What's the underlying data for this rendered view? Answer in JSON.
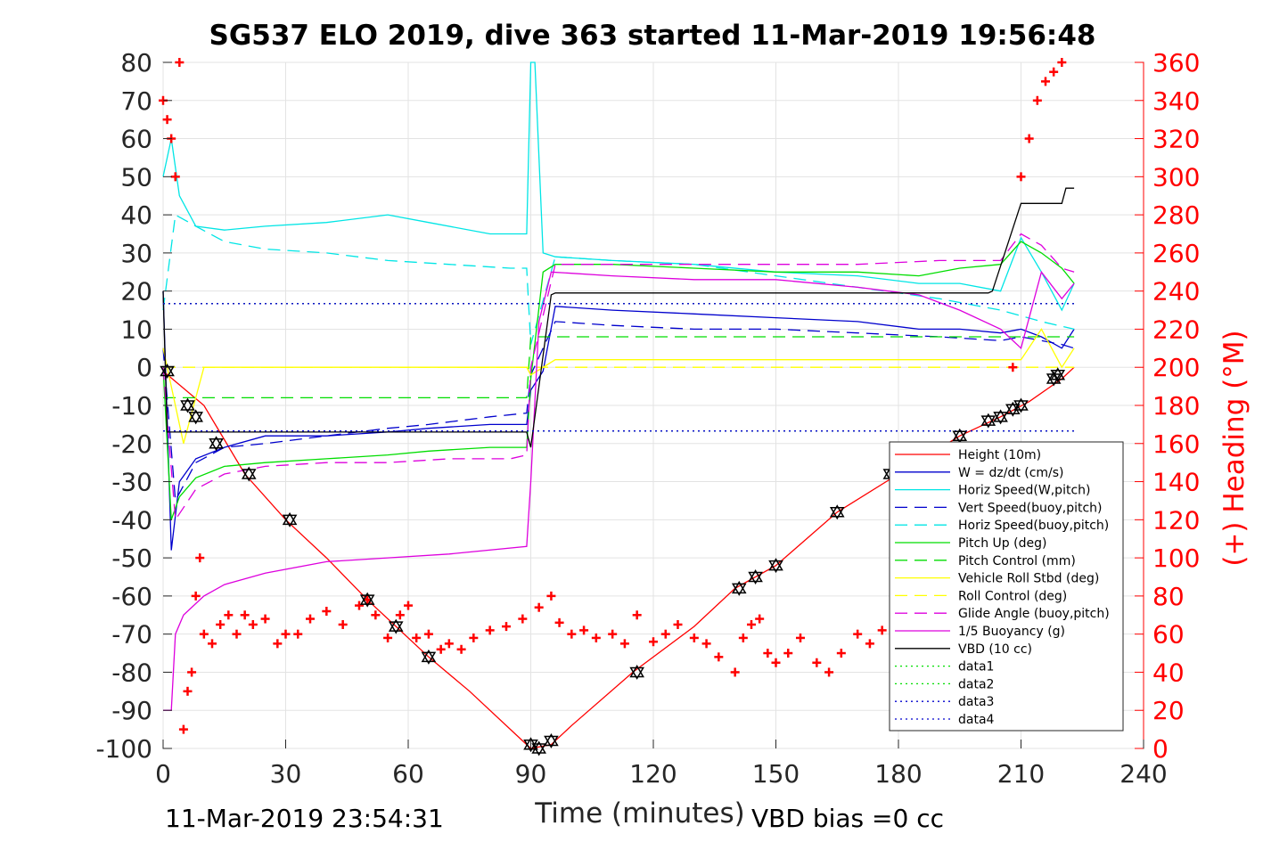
{
  "chart_data": {
    "type": "line",
    "title": "SG537 ELO 2019, dive 363 started 11-Mar-2019 19:56:48",
    "xlabel": "Time (minutes)",
    "ylabel": "",
    "ylabel_right": "(+) Heading (°M)",
    "xlim": [
      0,
      240
    ],
    "ylim": [
      -100,
      80
    ],
    "ylim_right": [
      0,
      360
    ],
    "xticks": [
      "0",
      "30",
      "60",
      "90",
      "120",
      "150",
      "180",
      "210",
      "240"
    ],
    "yticks_left": [
      "80",
      "70",
      "60",
      "50",
      "40",
      "30",
      "20",
      "10",
      "0",
      "-10",
      "-20",
      "-30",
      "-40",
      "-50",
      "-60",
      "-70",
      "-80",
      "-90",
      "-100"
    ],
    "yticks_right": [
      "360",
      "340",
      "320",
      "300",
      "280",
      "260",
      "240",
      "220",
      "200",
      "180",
      "160",
      "140",
      "120",
      "100",
      "80",
      "60",
      "40",
      "20",
      "0"
    ],
    "grid": true,
    "legend_position": "bottom-right",
    "footer_left": "11-Mar-2019 23:54:31",
    "footer_right": "VBD bias =0 cc",
    "series": [
      {
        "name": "Height (10m)",
        "color": "#ff0000",
        "style": "solid",
        "x": [
          0,
          10,
          20,
          30,
          40,
          50,
          57,
          65,
          75,
          90,
          95,
          100,
          115,
          130,
          140,
          150,
          165,
          180,
          195,
          205,
          212,
          220,
          223
        ],
        "y": [
          -1,
          -10,
          -28,
          -40,
          -50,
          -61,
          -68,
          -76,
          -85,
          -100,
          -99,
          -94,
          -80,
          -68,
          -58,
          -52,
          -38,
          -28,
          -18,
          -13,
          -9,
          -3,
          0
        ]
      },
      {
        "name": "W = dz/dt (cm/s)",
        "color": "#0000cd",
        "style": "solid",
        "x": [
          0,
          2,
          4,
          8,
          15,
          25,
          40,
          55,
          65,
          80,
          89,
          90,
          93,
          96,
          110,
          130,
          150,
          170,
          185,
          195,
          205,
          210,
          215,
          220,
          223
        ],
        "y": [
          20,
          -48,
          -30,
          -24,
          -21,
          -18,
          -18,
          -17,
          -16,
          -15,
          -15,
          -6,
          -1,
          16,
          15,
          14,
          13,
          12,
          10,
          10,
          9,
          10,
          8,
          5,
          10
        ]
      },
      {
        "name": "Horiz Speed(W,pitch)",
        "color": "#00e5e5",
        "style": "solid",
        "x": [
          0,
          2,
          4,
          8,
          15,
          25,
          40,
          55,
          65,
          80,
          89,
          90,
          91,
          93,
          96,
          110,
          130,
          150,
          170,
          185,
          195,
          205,
          210,
          215,
          220,
          223
        ],
        "y": [
          50,
          60,
          45,
          37,
          36,
          37,
          38,
          40,
          38,
          35,
          35,
          80,
          80,
          30,
          29,
          28,
          27,
          25,
          24,
          22,
          22,
          20,
          34,
          25,
          15,
          22
        ]
      },
      {
        "name": "Vert Speed(buoy,pitch)",
        "color": "#0000cd",
        "style": "dashed",
        "x": [
          0,
          3,
          8,
          15,
          25,
          40,
          55,
          65,
          80,
          89,
          90,
          96,
          110,
          130,
          150,
          170,
          190,
          205,
          210,
          215,
          220,
          223
        ],
        "y": [
          5,
          -35,
          -25,
          -21,
          -20,
          -18,
          -16,
          -15,
          -13,
          -12,
          -2,
          12,
          11,
          10,
          10,
          9,
          8,
          7,
          8,
          7,
          6,
          5
        ]
      },
      {
        "name": "Horiz Speed(buoy,pitch)",
        "color": "#00e5e5",
        "style": "dashed",
        "x": [
          0,
          3,
          8,
          15,
          25,
          40,
          55,
          70,
          85,
          89,
          90,
          96,
          110,
          130,
          150,
          170,
          190,
          205,
          215,
          223
        ],
        "y": [
          15,
          40,
          37,
          33,
          31,
          30,
          28,
          27,
          26,
          26,
          6,
          29,
          28,
          27,
          24,
          21,
          18,
          15,
          12,
          10
        ]
      },
      {
        "name": "Pitch Up (deg)",
        "color": "#00dd00",
        "style": "solid",
        "x": [
          0,
          2,
          4,
          8,
          15,
          25,
          40,
          55,
          65,
          80,
          89,
          90,
          93,
          96,
          110,
          130,
          150,
          170,
          185,
          195,
          205,
          210,
          215,
          220,
          223
        ],
        "y": [
          0,
          -40,
          -34,
          -29,
          -26,
          -25,
          -24,
          -23,
          -22,
          -21,
          -21,
          -3,
          25,
          27,
          27,
          26,
          25,
          25,
          24,
          26,
          27,
          33,
          30,
          26,
          22
        ]
      },
      {
        "name": "Pitch Control (mm)",
        "color": "#00dd00",
        "style": "dashed",
        "x": [
          0,
          10,
          30,
          60,
          89,
          90,
          96,
          130,
          160,
          190,
          223
        ],
        "y": [
          -8,
          -8,
          -8,
          -8,
          -8,
          8,
          8,
          8,
          8,
          8,
          8
        ]
      },
      {
        "name": "Vehicle Roll Stbd (deg)",
        "color": "#ffff00",
        "style": "solid",
        "x": [
          0,
          5,
          10,
          30,
          60,
          89,
          90,
          96,
          130,
          160,
          190,
          210,
          215,
          220,
          223
        ],
        "y": [
          5,
          -20,
          0,
          0,
          0,
          0,
          -2,
          2,
          2,
          2,
          2,
          2,
          10,
          0,
          5
        ]
      },
      {
        "name": "Roll Control (deg)",
        "color": "#ffff00",
        "style": "dashed",
        "x": [
          0,
          30,
          60,
          89,
          90,
          130,
          160,
          190,
          223
        ],
        "y": [
          0,
          0,
          0,
          0,
          0,
          0,
          0,
          0,
          0
        ]
      },
      {
        "name": "Glide Angle (buoy,pitch)",
        "color": "#dd00dd",
        "style": "dashed",
        "x": [
          0,
          3,
          8,
          15,
          25,
          40,
          55,
          70,
          85,
          89,
          90,
          96,
          110,
          130,
          150,
          170,
          190,
          205,
          210,
          215,
          220,
          223
        ],
        "y": [
          0,
          -40,
          -32,
          -28,
          -26,
          -25,
          -25,
          -24,
          -24,
          -23,
          0,
          27,
          27,
          27,
          27,
          27,
          28,
          28,
          35,
          32,
          26,
          25
        ]
      },
      {
        "name": "1/5 Buoyancy (g)",
        "color": "#dd00dd",
        "style": "solid",
        "x": [
          0,
          2,
          3,
          5,
          8,
          10,
          15,
          25,
          40,
          55,
          70,
          89,
          90,
          92,
          95,
          110,
          130,
          150,
          170,
          185,
          195,
          205,
          210,
          215,
          220,
          223
        ],
        "y": [
          -90,
          -90,
          -70,
          -65,
          -62,
          -60,
          -57,
          -54,
          -51,
          -50,
          -49,
          -47,
          -30,
          12,
          25,
          24,
          23,
          23,
          21,
          19,
          15,
          10,
          5,
          25,
          18,
          22
        ]
      },
      {
        "name": "VBD (10 cc)",
        "color": "#000000",
        "style": "solid",
        "x": [
          0,
          1,
          2,
          40,
          89,
          90,
          95,
          96,
          150,
          202,
          203,
          210,
          211,
          220,
          221,
          223
        ],
        "y": [
          20,
          -17,
          -17,
          -17,
          -17,
          -21,
          19,
          19.5,
          19.5,
          19.5,
          20,
          43,
          43,
          43,
          47,
          47
        ]
      },
      {
        "name": "data1",
        "color": "#00dd00",
        "style": "dotted",
        "x": [
          0,
          223
        ],
        "y": [
          16.7,
          16.7
        ]
      },
      {
        "name": "data2",
        "color": "#00dd00",
        "style": "dotted",
        "x": [
          0,
          223
        ],
        "y": [
          -16.7,
          -16.7
        ]
      },
      {
        "name": "data3",
        "color": "#0000cd",
        "style": "dotted",
        "x": [
          0,
          223
        ],
        "y": [
          16.7,
          16.7
        ]
      },
      {
        "name": "data4",
        "color": "#0000cd",
        "style": "dotted",
        "x": [
          0,
          223
        ],
        "y": [
          -16.7,
          -16.7
        ]
      }
    ],
    "heading": {
      "axis": "right",
      "color": "#ff0000",
      "marker": "+",
      "x": [
        0,
        1,
        2,
        3,
        4,
        5,
        6,
        7,
        8,
        9,
        10,
        12,
        14,
        16,
        18,
        20,
        22,
        25,
        28,
        30,
        33,
        36,
        40,
        44,
        48,
        50,
        52,
        55,
        58,
        60,
        62,
        65,
        68,
        70,
        73,
        76,
        80,
        84,
        88,
        92,
        95,
        97,
        100,
        103,
        106,
        110,
        113,
        116,
        120,
        123,
        126,
        130,
        133,
        136,
        140,
        142,
        144,
        146,
        148,
        150,
        153,
        156,
        160,
        163,
        166,
        170,
        173,
        176,
        180,
        183,
        186,
        190,
        193,
        196,
        200,
        203,
        206,
        208,
        210,
        212,
        214,
        216,
        218,
        220
      ],
      "y": [
        340,
        330,
        320,
        300,
        360,
        10,
        30,
        40,
        80,
        100,
        60,
        55,
        65,
        70,
        60,
        70,
        65,
        68,
        55,
        60,
        60,
        68,
        72,
        65,
        75,
        78,
        70,
        58,
        70,
        75,
        58,
        60,
        52,
        55,
        52,
        58,
        62,
        64,
        68,
        74,
        80,
        66,
        60,
        62,
        58,
        60,
        55,
        70,
        56,
        60,
        65,
        58,
        55,
        48,
        40,
        58,
        65,
        68,
        50,
        45,
        50,
        58,
        45,
        40,
        50,
        60,
        55,
        62,
        72,
        78,
        75,
        80,
        85,
        82,
        90,
        100,
        120,
        200,
        300,
        320,
        340,
        350,
        355,
        360
      ]
    },
    "markers": {
      "color": "#000000",
      "symbol": "triangle",
      "x": [
        1,
        6,
        8,
        13,
        21,
        31,
        50,
        57,
        65,
        90,
        92,
        95,
        116,
        141,
        145,
        150,
        165,
        178,
        195,
        202,
        205,
        208,
        210,
        218,
        219
      ],
      "y": [
        -1,
        -10,
        -13,
        -20,
        -28,
        -40,
        -61,
        -68,
        -76,
        -99,
        -100,
        -98,
        -80,
        -58,
        -55,
        -52,
        -38,
        -28,
        -18,
        -14,
        -13,
        -11,
        -10,
        -3,
        -2
      ]
    }
  }
}
